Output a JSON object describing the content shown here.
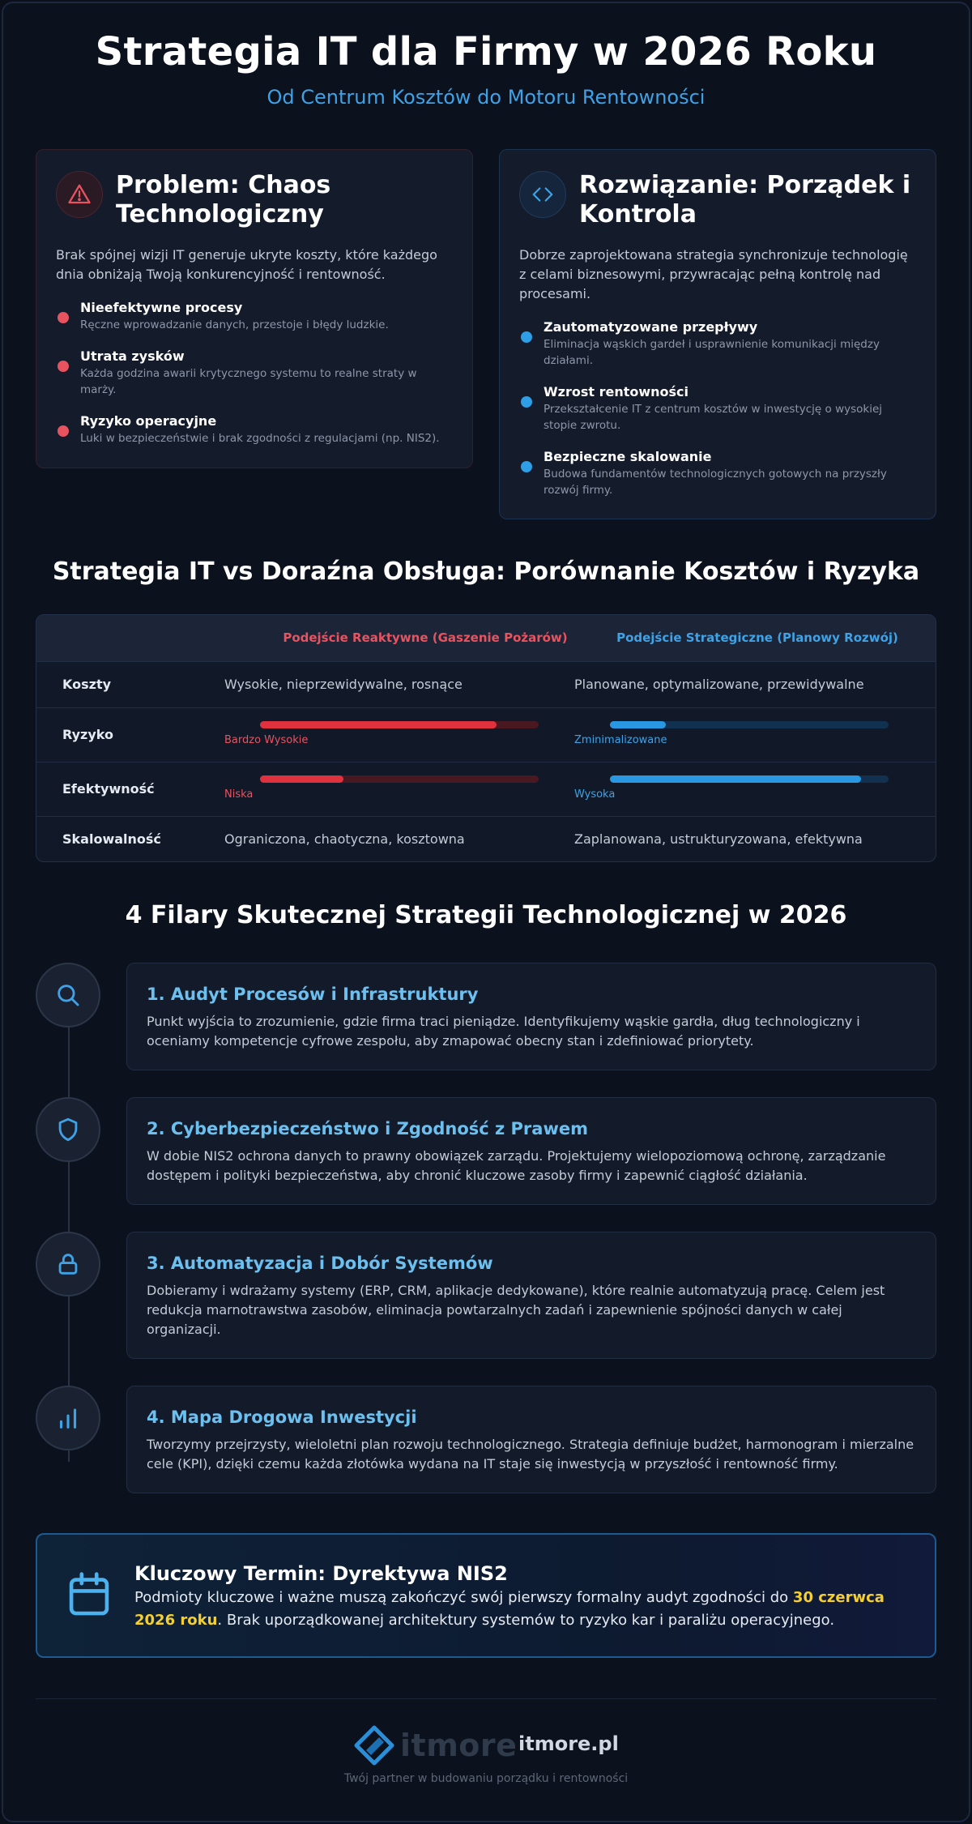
{
  "header": {
    "title": "Strategia IT dla Firmy w 2026 Roku",
    "subtitle": "Od Centrum Kosztów do Motoru Rentowności"
  },
  "problem": {
    "icon": "warning-icon",
    "title": "Problem: Chaos Technologiczny",
    "description": "Brak spójnej wizji IT generuje ukryte koszty, które każdego dnia obniżają Twoją konkurencyjność i rentowność.",
    "points": [
      {
        "title": "Nieefektywne procesy",
        "text": "Ręczne wprowadzanie danych, przestoje i błędy ludzkie."
      },
      {
        "title": "Utrata zysków",
        "text": "Każda godzina awarii krytycznego systemu to realne straty w marży."
      },
      {
        "title": "Ryzyko operacyjne",
        "text": "Luki w bezpieczeństwie i brak zgodności z regulacjami (np. NIS2)."
      }
    ]
  },
  "solution": {
    "icon": "code-icon",
    "title": "Rozwiązanie: Porządek i Kontrola",
    "description": "Dobrze zaprojektowana strategia synchronizuje technologię z celami biznesowymi, przywracając pełną kontrolę nad procesami.",
    "points": [
      {
        "title": "Zautomatyzowane przepływy",
        "text": "Eliminacja wąskich gardeł i usprawnienie komunikacji między działami."
      },
      {
        "title": "Wzrost rentowności",
        "text": "Przekształcenie IT z centrum kosztów w inwestycję o wysokiej stopie zwrotu."
      },
      {
        "title": "Bezpieczne skalowanie",
        "text": "Budowa fundamentów technologicznych gotowych na przyszły rozwój firmy."
      }
    ]
  },
  "comparison": {
    "title": "Strategia IT vs Doraźna Obsługa: Porównanie Kosztów i Ryzyka",
    "col_reactive": "Podejście Reaktywne (Gaszenie Pożarów)",
    "col_strategic": "Podejście Strategiczne (Planowy Rozwój)",
    "rows": {
      "costs": {
        "label": "Koszty",
        "reactive": "Wysokie, nieprzewidywalne, rosnące",
        "strategic": "Planowane, optymalizowane, przewidywalne"
      },
      "risk": {
        "label": "Ryzyko",
        "reactive_label": "Bardzo Wysokie",
        "reactive_level": 0.85,
        "strategic_label": "Zminimalizowane",
        "strategic_level": 0.2
      },
      "efficiency": {
        "label": "Efektywność",
        "reactive_label": "Niska",
        "reactive_level": 0.3,
        "strategic_label": "Wysoka",
        "strategic_level": 0.9
      },
      "scalability": {
        "label": "Skalowalność",
        "reactive": "Ograniczona, chaotyczna, kosztowna",
        "strategic": "Zaplanowana, ustrukturyzowana, efektywna"
      }
    },
    "colors": {
      "reactive": "#e0323e",
      "reactive_track": "#4a1820",
      "strategic": "#2a97e3",
      "strategic_track": "#12304f"
    }
  },
  "pillars": {
    "title": "4 Filary Skutecznej Strategii Technologicznej w 2026",
    "items": [
      {
        "icon": "search-icon",
        "title": "1. Audyt Procesów i Infrastruktury",
        "text": "Punkt wyjścia to zrozumienie, gdzie firma traci pieniądze. Identyfikujemy wąskie gardła, dług technologiczny i oceniamy kompetencje cyfrowe zespołu, aby zmapować obecny stan i zdefiniować priorytety."
      },
      {
        "icon": "shield-icon",
        "title": "2. Cyberbezpieczeństwo i Zgodność z Prawem",
        "text": "W dobie NIS2 ochrona danych to prawny obowiązek zarządu. Projektujemy wielopoziomową ochronę, zarządzanie dostępem i polityki bezpieczeństwa, aby chronić kluczowe zasoby firmy i zapewnić ciągłość działania."
      },
      {
        "icon": "lock-icon",
        "title": "3. Automatyzacja i Dobór Systemów",
        "text": "Dobieramy i wdrażamy systemy (ERP, CRM, aplikacje dedykowane), które realnie automatyzują pracę. Celem jest redukcja marnotrawstwa zasobów, eliminacja powtarzalnych zadań i zapewnienie spójności danych w całej organizacji."
      },
      {
        "icon": "bar-chart-icon",
        "title": "4. Mapa Drogowa Inwestycji",
        "text": "Tworzymy przejrzysty, wieloletni plan rozwoju technologicznego. Strategia definiuje budżet, harmonogram i mierzalne cele (KPI), dzięki czemu każda złotówka wydana na IT staje się inwestycją w przyszłość i rentowność firmy."
      }
    ]
  },
  "nis2": {
    "icon": "calendar-icon",
    "title": "Kluczowy Termin: Dyrektywa NIS2",
    "text_before": "Podmioty kluczowe i ważne muszą zakończyć swój pierwszy formalny audyt zgodności do ",
    "deadline": "30 czerwca 2026 roku",
    "text_after": ". Brak uporządkowanej architektury systemów to ryzyko kar i paraliżu operacyjnego."
  },
  "footer": {
    "logo_text": "itmore",
    "site": "itmore.pl",
    "tagline": "Twój partner w budowaniu porządku i rentowności"
  }
}
